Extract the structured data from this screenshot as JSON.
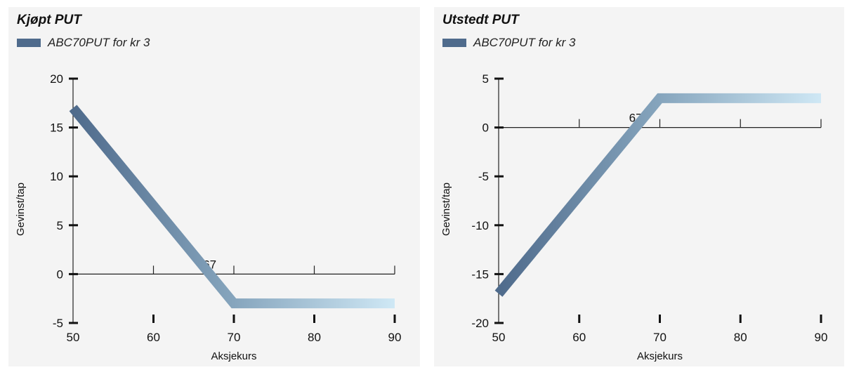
{
  "chart_data": [
    {
      "type": "line",
      "title": "Kjøpt PUT",
      "legend": [
        "ABC70PUT for kr 3"
      ],
      "xlabel": "Aksjekurs",
      "ylabel": "Gevinst/tap",
      "xlim": [
        50,
        90
      ],
      "ylim": [
        -5,
        20
      ],
      "xticks": [
        50,
        60,
        70,
        80,
        90
      ],
      "yticks": [
        -5,
        0,
        5,
        10,
        15,
        20
      ],
      "annotation": "67",
      "annotation_x": 67,
      "series": [
        {
          "name": "ABC70PUT for kr 3",
          "x": [
            50,
            70,
            90
          ],
          "y": [
            17,
            -3,
            -3
          ]
        }
      ],
      "colors": {
        "dark": "#4f6b8c",
        "mid": "#86a5bd",
        "light": "#cfe8f5"
      }
    },
    {
      "type": "line",
      "title": "Utstedt PUT",
      "legend": [
        "ABC70PUT for kr 3"
      ],
      "xlabel": "Aksjekurs",
      "ylabel": "Gevinst/tap",
      "xlim": [
        50,
        90
      ],
      "ylim": [
        -20,
        5
      ],
      "xticks": [
        50,
        60,
        70,
        80,
        90
      ],
      "yticks": [
        -20,
        -15,
        -10,
        -5,
        0,
        5
      ],
      "annotation": "67",
      "annotation_x": 67,
      "series": [
        {
          "name": "ABC70PUT for kr 3",
          "x": [
            50,
            70,
            90
          ],
          "y": [
            -17,
            3,
            3
          ]
        }
      ],
      "colors": {
        "dark": "#4f6b8c",
        "mid": "#86a5bd",
        "light": "#cfe8f5"
      }
    }
  ]
}
